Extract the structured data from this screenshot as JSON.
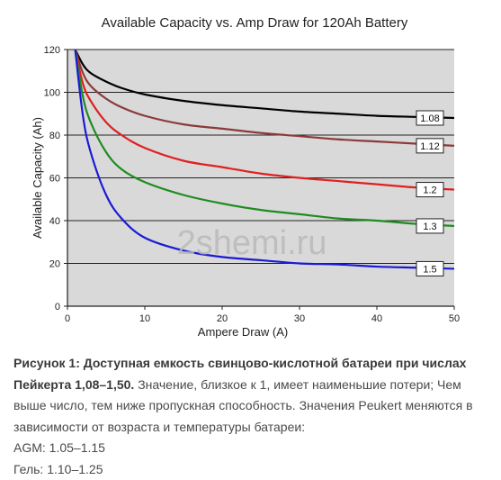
{
  "chart_data": {
    "type": "line",
    "title": "Available Capacity vs. Amp Draw for 120Ah Battery",
    "xlabel": "Ampere Draw (A)",
    "ylabel": "Available Capacity (Ah)",
    "xlim": [
      0,
      50
    ],
    "ylim": [
      0,
      120
    ],
    "xticks": [
      0,
      10,
      20,
      30,
      40,
      50
    ],
    "yticks": [
      0,
      20,
      40,
      60,
      80,
      100,
      120
    ],
    "grid": "horizontal",
    "background": "#d9d9d9",
    "series": [
      {
        "name": "1.08",
        "color": "#000000",
        "x": [
          1,
          2,
          3,
          5,
          7,
          10,
          15,
          20,
          25,
          30,
          35,
          40,
          45,
          50
        ],
        "y": [
          120,
          113,
          109,
          105,
          102,
          99,
          96,
          94,
          92.5,
          91,
          90,
          89,
          88.5,
          88
        ]
      },
      {
        "name": "1.12",
        "color": "#8b3a3a",
        "x": [
          1,
          2,
          3,
          5,
          7,
          10,
          15,
          20,
          25,
          30,
          35,
          40,
          45,
          50
        ],
        "y": [
          120,
          109,
          103,
          97,
          93,
          89,
          85,
          83,
          81,
          79.5,
          78,
          77,
          76,
          75
        ]
      },
      {
        "name": "1.2",
        "color": "#e02020",
        "x": [
          1,
          2,
          3,
          5,
          7,
          10,
          15,
          20,
          25,
          30,
          35,
          40,
          45,
          50
        ],
        "y": [
          120,
          104,
          96,
          86,
          80,
          74,
          68,
          65,
          62,
          60,
          58.5,
          57,
          55.5,
          54.5
        ]
      },
      {
        "name": "1.3",
        "color": "#1e8c1e",
        "x": [
          1,
          2,
          3,
          5,
          7,
          10,
          15,
          20,
          25,
          30,
          35,
          40,
          45,
          50
        ],
        "y": [
          120,
          98,
          86,
          72,
          64,
          58,
          52,
          48,
          45,
          43,
          41,
          40,
          38.5,
          37.5
        ]
      },
      {
        "name": "1.5",
        "color": "#1a1ad6",
        "x": [
          1,
          2,
          3,
          5,
          7,
          10,
          15,
          20,
          25,
          30,
          35,
          40,
          45,
          50
        ],
        "y": [
          120,
          89,
          72,
          52,
          41,
          32,
          26,
          23,
          21.5,
          20,
          19.5,
          18.5,
          18,
          17.5
        ]
      }
    ]
  },
  "watermark": "2shemi.ru",
  "caption": {
    "bold": "Рисунок 1: Доступная емкость свинцово-кислотной батареи при числах Пейкерта 1,08–1,50.",
    "text": " Значение, близкое к 1, имеет наименьшие потери; Чем выше число, тем ниже пропускная способность. Значения Peukert меняются в зависимости от возраста и температуры батареи:",
    "agm": "AGM: 1.05–1.15",
    "gel": "Гель: 1.10–1.25"
  }
}
